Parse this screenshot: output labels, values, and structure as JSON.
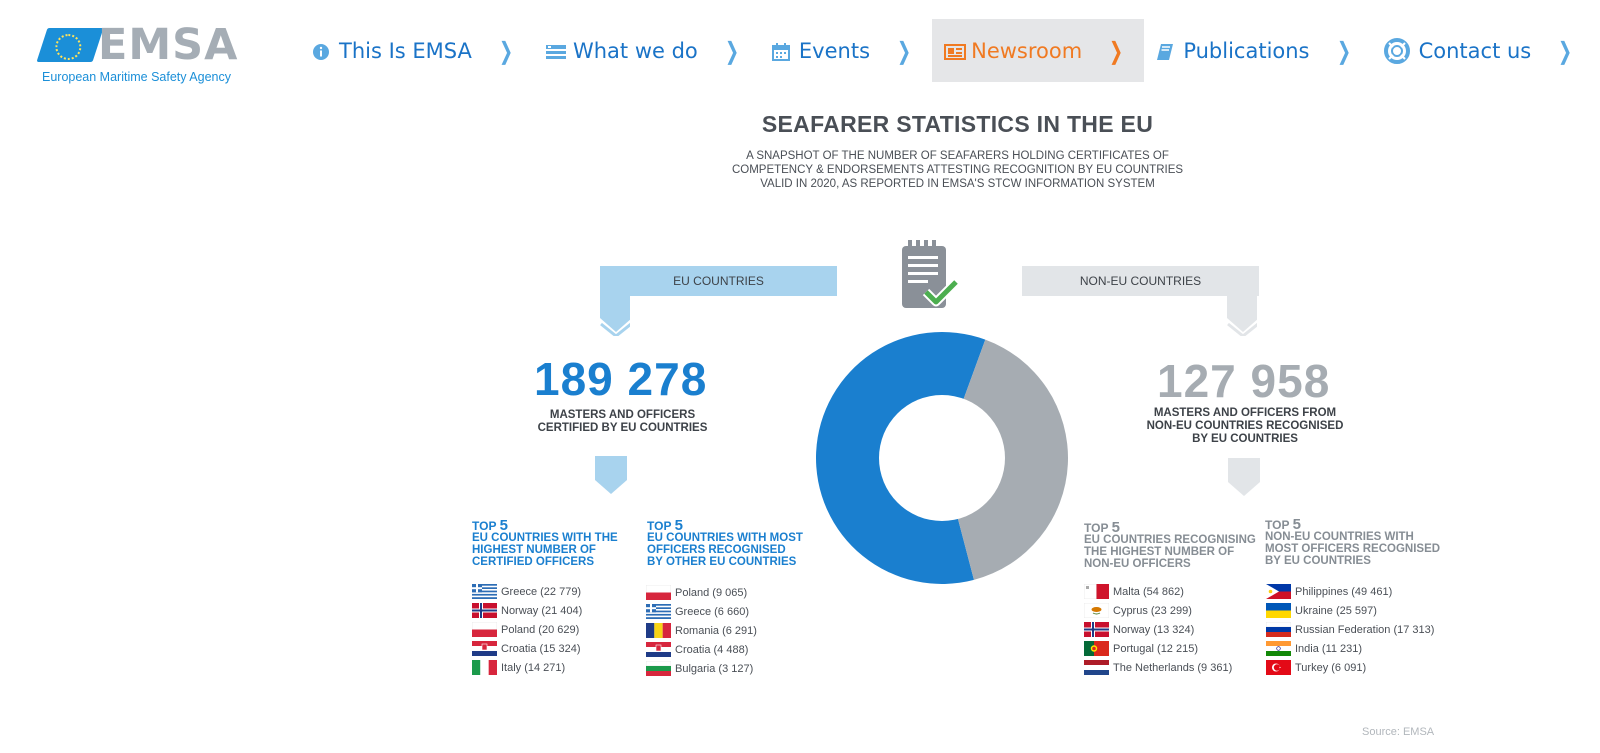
{
  "logo": {
    "word": "EMSA",
    "tagline": "European Maritime Safety Agency"
  },
  "nav": [
    {
      "label": "This Is EMSA",
      "icon": "info-circle-icon"
    },
    {
      "label": "What we do",
      "icon": "list-icon"
    },
    {
      "label": "Events",
      "icon": "calendar-icon"
    },
    {
      "label": "Newsroom",
      "icon": "newspaper-icon",
      "active": true
    },
    {
      "label": "Publications",
      "icon": "book-icon"
    },
    {
      "label": "Contact us",
      "icon": "lifebuoy-icon"
    }
  ],
  "infographic": {
    "title": "SEAFARER STATISTICS IN THE EU",
    "subtitle_lines": [
      "A SNAPSHOT OF THE NUMBER OF SEAFARERS HOLDING CERTIFICATES OF",
      "COMPETENCY & ENDORSEMENTS ATTESTING RECOGNITION BY EU COUNTRIES",
      "VALID IN 2020, AS REPORTED IN EMSA'S STCW INFORMATION SYSTEM"
    ],
    "eu_banner": "EU COUNTRIES",
    "noneu_banner": "NON-EU COUNTRIES",
    "eu_total": "189 278",
    "eu_caption_lines": [
      "MASTERS AND OFFICERS",
      "CERTIFIED BY EU COUNTRIES"
    ],
    "noneu_total": "127 958",
    "noneu_caption_lines": [
      "MASTERS AND OFFICERS FROM",
      "NON-EU COUNTRIES RECOGNISED",
      "BY EU COUNTRIES"
    ],
    "colors": {
      "eu": "#1a7fcf",
      "noneu": "#a6acb2",
      "eu_light": "#a8d3ee",
      "noneu_light": "#e2e5e8"
    },
    "top_prefix": "TOP",
    "top_number": "5",
    "lists": [
      {
        "heading_lines": [
          "EU COUNTRIES WITH THE",
          "HIGHEST NUMBER OF",
          "CERTIFIED OFFICERS"
        ],
        "items": [
          "Greece (22 779)",
          "Norway (21 404)",
          "Poland (20 629)",
          "Croatia (15 324)",
          "Italy (14 271)"
        ],
        "flags": [
          "greece",
          "norway",
          "poland",
          "croatia",
          "italy"
        ]
      },
      {
        "heading_lines": [
          "EU COUNTRIES WITH MOST",
          "OFFICERS RECOGNISED",
          "BY OTHER EU COUNTRIES"
        ],
        "items": [
          "Poland (9 065)",
          "Greece (6 660)",
          "Romania (6 291)",
          "Croatia (4 488)",
          "Bulgaria (3 127)"
        ],
        "flags": [
          "poland",
          "greece",
          "romania",
          "croatia",
          "bulgaria"
        ]
      },
      {
        "heading_lines": [
          "EU COUNTRIES RECOGNISING",
          "THE HIGHEST NUMBER OF",
          "NON-EU OFFICERS"
        ],
        "items": [
          "Malta (54 862)",
          "Cyprus (23 299)",
          "Norway (13 324)",
          "Portugal (12 215)",
          "The Netherlands (9 361)"
        ],
        "flags": [
          "malta",
          "cyprus",
          "norway",
          "portugal",
          "netherlands"
        ]
      },
      {
        "heading_lines": [
          "NON-EU COUNTRIES WITH",
          "MOST OFFICERS RECOGNISED",
          "BY EU COUNTRIES"
        ],
        "items": [
          "Philippines (49 461)",
          "Ukraine (25 597)",
          "Russian Federation (17 313)",
          "India (11 231)",
          "Turkey (6 091)"
        ],
        "flags": [
          "philippines",
          "ukraine",
          "russia",
          "india",
          "turkey"
        ]
      }
    ],
    "source": "Source: EMSA"
  },
  "chart_data": {
    "type": "pie",
    "categories": [
      "EU COUNTRIES",
      "NON-EU COUNTRIES"
    ],
    "values": [
      189278,
      127958
    ]
  }
}
